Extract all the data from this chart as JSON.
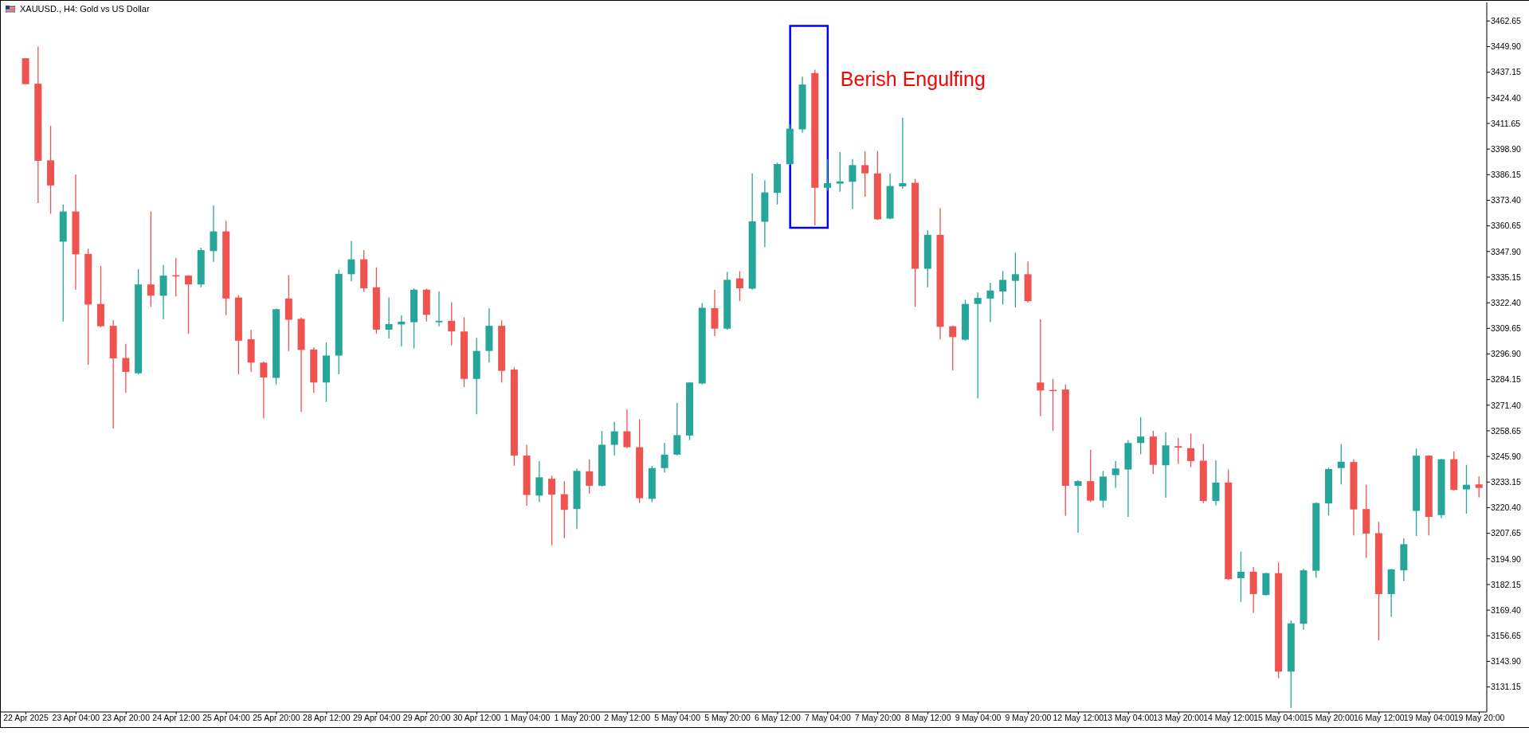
{
  "chart_data": {
    "type": "candlestick",
    "title": "XAUUSD., H4: Gold vs US Dollar",
    "categories": [
      "22 Apr 2025",
      null,
      null,
      null,
      "23 Apr 04:00",
      null,
      null,
      null,
      "23 Apr 20:00",
      null,
      null,
      null,
      "24 Apr 12:00",
      null,
      null,
      null,
      "25 Apr 04:00",
      null,
      null,
      null,
      "25 Apr 20:00",
      null,
      null,
      null,
      "28 Apr 12:00",
      null,
      null,
      null,
      "29 Apr 04:00",
      null,
      null,
      null,
      "29 Apr 20:00",
      null,
      null,
      null,
      "30 Apr 12:00",
      null,
      null,
      null,
      "1 May 04:00",
      null,
      null,
      null,
      "1 May 20:00",
      null,
      null,
      null,
      "2 May 12:00",
      null,
      null,
      null,
      "5 May 04:00",
      null,
      null,
      null,
      "5 May 20:00",
      null,
      null,
      null,
      "6 May 12:00",
      null,
      null,
      null,
      "7 May 04:00",
      null,
      null,
      null,
      "7 May 20:00",
      null,
      null,
      null,
      "8 May 12:00",
      null,
      null,
      null,
      "9 May 04:00",
      null,
      null,
      null,
      "9 May 20:00",
      null,
      null,
      null,
      "12 May 12:00",
      null,
      null,
      null,
      "13 May 04:00",
      null,
      null,
      null,
      "13 May 20:00",
      null,
      null,
      null,
      "14 May 12:00",
      null,
      null,
      null,
      "15 May 04:00",
      null,
      null,
      null,
      "15 May 20:00",
      null,
      null,
      null,
      "16 May 12:00",
      null,
      null,
      null,
      "19 May 04:00",
      null,
      null,
      null,
      "19 May 20:00"
    ],
    "ohlc": [
      [
        3444.1,
        3444.1,
        3431.2,
        3431.2
      ],
      [
        3431.4,
        3449.9,
        3372.0,
        3393.0
      ],
      [
        3393.3,
        3410.4,
        3366.6,
        3380.8
      ],
      [
        3352.8,
        3371.3,
        3313.0,
        3367.8
      ],
      [
        3367.8,
        3386.3,
        3328.9,
        3346.5
      ],
      [
        3346.7,
        3349.3,
        3291.5,
        3321.5
      ],
      [
        3321.8,
        3340.7,
        3310.2,
        3310.7
      ],
      [
        3310.9,
        3313.7,
        3259.8,
        3294.7
      ],
      [
        3294.9,
        3301.9,
        3277.6,
        3288.0
      ],
      [
        3287.3,
        3339.1,
        3286.8,
        3331.5
      ],
      [
        3331.5,
        3367.8,
        3320.4,
        3325.9
      ],
      [
        3325.9,
        3341.2,
        3314.1,
        3335.9
      ],
      [
        3336.1,
        3344.7,
        3325.5,
        3335.6
      ],
      [
        3335.9,
        3336.1,
        3307.0,
        3331.5
      ],
      [
        3331.5,
        3349.8,
        3330.1,
        3348.6
      ],
      [
        3348.1,
        3370.8,
        3342.8,
        3357.9
      ],
      [
        3357.9,
        3363.2,
        3316.2,
        3324.5
      ],
      [
        3325.0,
        3326.2,
        3286.8,
        3303.5
      ],
      [
        3304.2,
        3309.0,
        3288.0,
        3292.6
      ],
      [
        3292.6,
        3293.1,
        3264.9,
        3285.2
      ],
      [
        3285.0,
        3319.5,
        3281.7,
        3319.2
      ],
      [
        3324.5,
        3336.1,
        3298.4,
        3313.9
      ],
      [
        3314.4,
        3315.1,
        3267.9,
        3298.9
      ],
      [
        3299.1,
        3300.2,
        3277.6,
        3282.7
      ],
      [
        3282.7,
        3302.6,
        3273.0,
        3296.1
      ],
      [
        3296.1,
        3338.9,
        3286.8,
        3336.8
      ],
      [
        3336.6,
        3353.2,
        3333.1,
        3344.0
      ],
      [
        3344.0,
        3348.6,
        3327.8,
        3329.6
      ],
      [
        3330.1,
        3340.0,
        3307.0,
        3309.0
      ],
      [
        3309.0,
        3325.0,
        3304.6,
        3311.8
      ],
      [
        3311.6,
        3316.2,
        3300.7,
        3313.0
      ],
      [
        3312.7,
        3329.6,
        3299.6,
        3328.9
      ],
      [
        3328.9,
        3329.4,
        3313.0,
        3316.4
      ],
      [
        3312.7,
        3328.0,
        3310.7,
        3313.4
      ],
      [
        3313.4,
        3322.7,
        3301.2,
        3308.1
      ],
      [
        3308.1,
        3315.1,
        3280.4,
        3284.5
      ],
      [
        3284.5,
        3304.9,
        3266.9,
        3298.4
      ],
      [
        3298.4,
        3319.7,
        3292.6,
        3310.9
      ],
      [
        3310.9,
        3313.7,
        3282.7,
        3288.5
      ],
      [
        3289.1,
        3290.3,
        3241.3,
        3246.3
      ],
      [
        3246.3,
        3251.7,
        3221.4,
        3226.7
      ],
      [
        3226.4,
        3243.6,
        3223.2,
        3235.5
      ],
      [
        3234.8,
        3236.4,
        3201.7,
        3226.9
      ],
      [
        3227.1,
        3233.6,
        3205.2,
        3219.3
      ],
      [
        3219.7,
        3239.9,
        3209.8,
        3238.7
      ],
      [
        3238.5,
        3244.5,
        3227.4,
        3231.3
      ],
      [
        3231.3,
        3258.6,
        3230.8,
        3251.7
      ],
      [
        3251.7,
        3263.2,
        3246.3,
        3258.4
      ],
      [
        3258.4,
        3269.2,
        3250.0,
        3250.5
      ],
      [
        3250.5,
        3264.4,
        3222.7,
        3225.1
      ],
      [
        3224.8,
        3241.3,
        3223.2,
        3240.1
      ],
      [
        3240.1,
        3252.6,
        3237.8,
        3246.8
      ],
      [
        3246.8,
        3272.5,
        3246.3,
        3256.5
      ],
      [
        3256.3,
        3282.9,
        3254.0,
        3282.7
      ],
      [
        3282.2,
        3322.2,
        3281.7,
        3319.9
      ],
      [
        3319.7,
        3328.9,
        3305.8,
        3309.5
      ],
      [
        3309.5,
        3337.7,
        3309.0,
        3333.8
      ],
      [
        3334.5,
        3338.0,
        3323.2,
        3329.6
      ],
      [
        3329.4,
        3386.8,
        3328.9,
        3362.9
      ],
      [
        3362.7,
        3383.3,
        3350.0,
        3377.3
      ],
      [
        3377.1,
        3392.1,
        3371.3,
        3391.4
      ],
      [
        3391.4,
        3411.3,
        3390.9,
        3409.0
      ],
      [
        3408.7,
        3434.9,
        3407.1,
        3431.0
      ],
      [
        3436.7,
        3438.4,
        3360.9,
        3379.6
      ],
      [
        3379.6,
        3393.9,
        3378.2,
        3381.9
      ],
      [
        3381.7,
        3397.4,
        3377.7,
        3382.8
      ],
      [
        3382.6,
        3393.9,
        3369.0,
        3390.9
      ],
      [
        3390.9,
        3397.9,
        3375.2,
        3386.8
      ],
      [
        3386.8,
        3397.9,
        3363.6,
        3363.9
      ],
      [
        3364.3,
        3386.8,
        3363.9,
        3380.5
      ],
      [
        3380.3,
        3414.5,
        3379.1,
        3381.9
      ],
      [
        3382.1,
        3384.0,
        3320.4,
        3339.3
      ],
      [
        3339.3,
        3358.5,
        3330.1,
        3356.2
      ],
      [
        3356.2,
        3369.4,
        3304.2,
        3310.4
      ],
      [
        3310.7,
        3311.1,
        3288.7,
        3305.3
      ],
      [
        3304.0,
        3323.8,
        3303.5,
        3321.8
      ],
      [
        3321.8,
        3327.5,
        3274.8,
        3324.8
      ],
      [
        3324.5,
        3332.4,
        3312.7,
        3328.5
      ],
      [
        3328.0,
        3338.2,
        3321.5,
        3333.8
      ],
      [
        3333.3,
        3347.4,
        3320.1,
        3336.6
      ],
      [
        3336.6,
        3343.0,
        3322.5,
        3323.2
      ],
      [
        3282.7,
        3314.1,
        3266.0,
        3278.7
      ],
      [
        3279.0,
        3284.5,
        3258.6,
        3278.5
      ],
      [
        3279.2,
        3281.7,
        3216.3,
        3231.3
      ],
      [
        3231.3,
        3234.1,
        3207.9,
        3233.6
      ],
      [
        3233.6,
        3249.1,
        3223.2,
        3223.9
      ],
      [
        3223.9,
        3238.7,
        3220.4,
        3235.9
      ],
      [
        3236.6,
        3243.6,
        3230.2,
        3239.9
      ],
      [
        3239.4,
        3254.0,
        3215.8,
        3252.6
      ],
      [
        3252.6,
        3265.5,
        3247.0,
        3255.8
      ],
      [
        3255.8,
        3258.6,
        3237.1,
        3241.7
      ],
      [
        3241.5,
        3257.9,
        3225.3,
        3251.4
      ],
      [
        3251.0,
        3255.1,
        3242.2,
        3250.3
      ],
      [
        3250.0,
        3257.2,
        3240.6,
        3243.6
      ],
      [
        3243.8,
        3252.1,
        3222.7,
        3223.7
      ],
      [
        3223.7,
        3244.0,
        3221.6,
        3232.9
      ],
      [
        3232.9,
        3239.4,
        3184.3,
        3184.8
      ],
      [
        3185.3,
        3198.5,
        3173.5,
        3188.5
      ],
      [
        3188.5,
        3190.8,
        3168.1,
        3177.4
      ],
      [
        3176.9,
        3188.0,
        3176.7,
        3187.8
      ],
      [
        3187.8,
        3193.1,
        3135.5,
        3138.8
      ],
      [
        3138.8,
        3164.2,
        3120.7,
        3162.8
      ],
      [
        3162.6,
        3190.1,
        3159.6,
        3189.2
      ],
      [
        3189.0,
        3223.0,
        3185.5,
        3222.7
      ],
      [
        3222.5,
        3240.3,
        3216.5,
        3239.6
      ],
      [
        3240.1,
        3252.1,
        3232.0,
        3243.3
      ],
      [
        3243.1,
        3244.5,
        3206.6,
        3219.5
      ],
      [
        3219.7,
        3231.8,
        3195.4,
        3207.5
      ],
      [
        3207.7,
        3213.3,
        3154.3,
        3177.4
      ],
      [
        3177.4,
        3190.0,
        3166.1,
        3189.7
      ],
      [
        3189.2,
        3205.2,
        3183.9,
        3202.2
      ],
      [
        3218.8,
        3249.8,
        3206.3,
        3246.3
      ],
      [
        3246.3,
        3246.5,
        3206.6,
        3215.8
      ],
      [
        3216.7,
        3244.7,
        3215.1,
        3244.5
      ],
      [
        3244.5,
        3248.4,
        3229.0,
        3229.2
      ],
      [
        3229.5,
        3241.7,
        3217.4,
        3231.8
      ],
      [
        3232.0,
        3235.9,
        3225.5,
        3230.2
      ]
    ],
    "colors": [
      "#ef5350",
      "#ef5350",
      "#ef5350",
      "#26a69a",
      "#ef5350",
      "#ef5350",
      "#ef5350",
      "#ef5350",
      "#ef5350",
      "#26a69a",
      "#ef5350",
      "#26a69a",
      "#ef5350",
      "#ef5350",
      "#26a69a",
      "#26a69a",
      "#ef5350",
      "#ef5350",
      "#ef5350",
      "#ef5350",
      "#26a69a",
      "#ef5350",
      "#ef5350",
      "#ef5350",
      "#26a69a",
      "#26a69a",
      "#26a69a",
      "#ef5350",
      "#ef5350",
      "#26a69a",
      "#26a69a",
      "#26a69a",
      "#ef5350",
      "#26a69a",
      "#ef5350",
      "#ef5350",
      "#26a69a",
      "#26a69a",
      "#ef5350",
      "#ef5350",
      "#ef5350",
      "#26a69a",
      "#ef5350",
      "#ef5350",
      "#26a69a",
      "#ef5350",
      "#26a69a",
      "#26a69a",
      "#ef5350",
      "#ef5350",
      "#26a69a",
      "#26a69a",
      "#26a69a",
      "#26a69a",
      "#26a69a",
      "#ef5350",
      "#26a69a",
      "#ef5350",
      "#26a69a",
      "#26a69a",
      "#26a69a",
      "#26a69a",
      "#26a69a",
      "#ef5350",
      "#26a69a",
      "#26a69a",
      "#26a69a",
      "#ef5350",
      "#ef5350",
      "#26a69a",
      "#26a69a",
      "#ef5350",
      "#26a69a",
      "#ef5350",
      "#ef5350",
      "#26a69a",
      "#26a69a",
      "#26a69a",
      "#26a69a",
      "#26a69a",
      "#ef5350",
      "#ef5350",
      "#ef5350",
      "#ef5350",
      "#26a69a",
      "#ef5350",
      "#26a69a",
      "#26a69a",
      "#26a69a",
      "#26a69a",
      "#ef5350",
      "#26a69a",
      "#ef5350",
      "#ef5350",
      "#ef5350",
      "#26a69a",
      "#ef5350",
      "#26a69a",
      "#ef5350",
      "#26a69a",
      "#ef5350",
      "#26a69a",
      "#26a69a",
      "#26a69a",
      "#26a69a",
      "#26a69a",
      "#ef5350",
      "#ef5350",
      "#ef5350",
      "#26a69a",
      "#26a69a",
      "#26a69a",
      "#ef5350",
      "#26a69a",
      "#ef5350",
      "#26a69a",
      "#ef5350"
    ],
    "ylim": [
      3118.7,
      3471.9
    ],
    "yticks": [
      3131.15,
      {
        "value": 3143.9,
        "label": "3143.90"
      },
      3156.65,
      {
        "value": 3169.4,
        "label": "3169.40"
      },
      3182.15,
      {
        "value": 3194.9,
        "label": "3194.90"
      },
      3207.65,
      {
        "value": 3220.4,
        "label": "3220.40"
      },
      3233.15,
      {
        "value": 3245.9,
        "label": "3245.90"
      },
      3258.65,
      {
        "value": 3271.4,
        "label": "3271.40"
      },
      3284.15,
      {
        "value": 3296.9,
        "label": "3296.90"
      },
      3309.65,
      {
        "value": 3322.4,
        "label": "3322.40"
      },
      3335.15,
      {
        "value": 3347.9,
        "label": "3347.90"
      },
      3360.65,
      {
        "value": 3373.4,
        "label": "3373.40"
      },
      3386.15,
      {
        "value": 3398.9,
        "label": "3398.90"
      },
      3411.65,
      {
        "value": 3424.4,
        "label": "3424.40"
      },
      3437.15,
      {
        "value": 3449.9,
        "label": "3449.90"
      },
      3462.65
    ],
    "annotations": [
      "Berish Engulfing"
    ]
  }
}
